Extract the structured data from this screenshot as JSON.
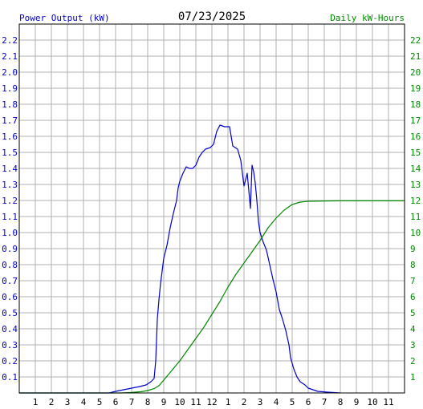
{
  "chart_data": {
    "type": "line",
    "title": "07/23/2025",
    "left_axis_label": "Power Output (kW)",
    "right_axis_label": "Daily kW-Hours",
    "x_ticks": [
      "1",
      "2",
      "3",
      "4",
      "5",
      "6",
      "7",
      "8",
      "9",
      "10",
      "11",
      "12",
      "1",
      "2",
      "3",
      "4",
      "5",
      "6",
      "7",
      "8",
      "9",
      "10",
      "11"
    ],
    "x_range_hours": [
      0,
      24
    ],
    "left_ylim": [
      0,
      2.3
    ],
    "left_ticks": [
      "0.1",
      "0.2",
      "0.3",
      "0.4",
      "0.5",
      "0.6",
      "0.7",
      "0.8",
      "0.9",
      "1.0",
      "1.1",
      "1.2",
      "1.3",
      "1.4",
      "1.5",
      "1.6",
      "1.7",
      "1.8",
      "1.9",
      "2.0",
      "2.1",
      "2.2"
    ],
    "right_ylim": [
      0,
      23
    ],
    "right_ticks": [
      "1",
      "2",
      "3",
      "4",
      "5",
      "6",
      "7",
      "8",
      "9",
      "10",
      "11",
      "12",
      "13",
      "14",
      "15",
      "16",
      "17",
      "18",
      "19",
      "20",
      "21",
      "22"
    ],
    "grid": true,
    "series": [
      {
        "axis": "left",
        "color": "#0000cc",
        "points": [
          [
            0,
            0
          ],
          [
            5.6,
            0
          ],
          [
            6.0,
            0.01
          ],
          [
            6.5,
            0.02
          ],
          [
            7.0,
            0.03
          ],
          [
            7.5,
            0.04
          ],
          [
            7.9,
            0.05
          ],
          [
            8.2,
            0.07
          ],
          [
            8.4,
            0.09
          ],
          [
            8.5,
            0.2
          ],
          [
            8.6,
            0.46
          ],
          [
            8.7,
            0.58
          ],
          [
            8.8,
            0.68
          ],
          [
            8.9,
            0.76
          ],
          [
            9.0,
            0.84
          ],
          [
            9.2,
            0.92
          ],
          [
            9.4,
            1.03
          ],
          [
            9.6,
            1.12
          ],
          [
            9.8,
            1.2
          ],
          [
            9.9,
            1.28
          ],
          [
            10.0,
            1.32
          ],
          [
            10.2,
            1.37
          ],
          [
            10.4,
            1.41
          ],
          [
            10.6,
            1.4
          ],
          [
            10.8,
            1.4
          ],
          [
            11.0,
            1.42
          ],
          [
            11.2,
            1.47
          ],
          [
            11.4,
            1.5
          ],
          [
            11.6,
            1.52
          ],
          [
            11.9,
            1.53
          ],
          [
            12.1,
            1.55
          ],
          [
            12.3,
            1.63
          ],
          [
            12.5,
            1.67
          ],
          [
            12.8,
            1.66
          ],
          [
            13.1,
            1.66
          ],
          [
            13.3,
            1.54
          ],
          [
            13.6,
            1.52
          ],
          [
            13.8,
            1.45
          ],
          [
            13.9,
            1.37
          ],
          [
            14.0,
            1.29
          ],
          [
            14.2,
            1.37
          ],
          [
            14.4,
            1.15
          ],
          [
            14.5,
            1.42
          ],
          [
            14.6,
            1.38
          ],
          [
            14.7,
            1.31
          ],
          [
            14.8,
            1.2
          ],
          [
            14.9,
            1.07
          ],
          [
            15.0,
            1.0
          ],
          [
            15.2,
            0.94
          ],
          [
            15.4,
            0.89
          ],
          [
            15.6,
            0.8
          ],
          [
            15.8,
            0.71
          ],
          [
            16.0,
            0.63
          ],
          [
            16.2,
            0.52
          ],
          [
            16.4,
            0.46
          ],
          [
            16.6,
            0.39
          ],
          [
            16.8,
            0.3
          ],
          [
            16.9,
            0.22
          ],
          [
            17.1,
            0.15
          ],
          [
            17.3,
            0.1
          ],
          [
            17.5,
            0.07
          ],
          [
            17.8,
            0.05
          ],
          [
            18.0,
            0.03
          ],
          [
            18.3,
            0.02
          ],
          [
            18.6,
            0.01
          ],
          [
            19.2,
            0.005
          ],
          [
            20.0,
            0
          ]
        ]
      },
      {
        "axis": "right",
        "color": "#008800",
        "points": [
          [
            0,
            0
          ],
          [
            6.3,
            0
          ],
          [
            7.0,
            0.03
          ],
          [
            7.6,
            0.08
          ],
          [
            8.0,
            0.15
          ],
          [
            8.4,
            0.27
          ],
          [
            8.7,
            0.45
          ],
          [
            9.0,
            0.8
          ],
          [
            9.5,
            1.4
          ],
          [
            10.0,
            2.0
          ],
          [
            10.5,
            2.7
          ],
          [
            11.0,
            3.4
          ],
          [
            11.5,
            4.1
          ],
          [
            12.0,
            4.9
          ],
          [
            12.5,
            5.7
          ],
          [
            13.0,
            6.6
          ],
          [
            13.5,
            7.4
          ],
          [
            14.0,
            8.1
          ],
          [
            14.5,
            8.8
          ],
          [
            15.0,
            9.5
          ],
          [
            15.5,
            10.3
          ],
          [
            16.0,
            10.9
          ],
          [
            16.5,
            11.4
          ],
          [
            17.0,
            11.75
          ],
          [
            17.5,
            11.9
          ],
          [
            18.0,
            11.95
          ],
          [
            19.0,
            11.97
          ],
          [
            20.0,
            11.98
          ],
          [
            24.0,
            11.98
          ]
        ]
      }
    ]
  },
  "colors": {
    "left_text": "#0000cc",
    "right_text": "#008800",
    "grid": "#b0b0b0",
    "frame": "#000000"
  }
}
